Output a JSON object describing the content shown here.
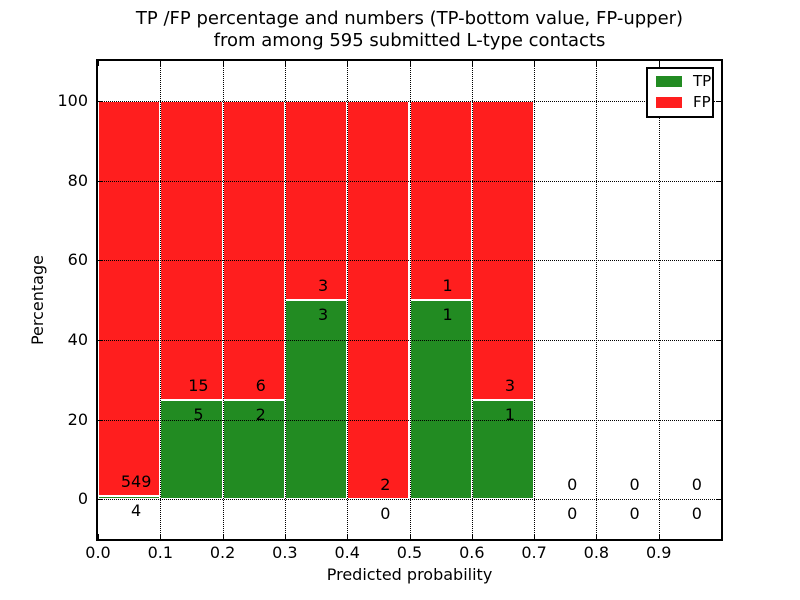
{
  "title": {
    "line1": "TP /FP percentage and numbers (TP-bottom value, FP-upper)",
    "line2": "from among 595 submitted L-type contacts"
  },
  "chart_data": {
    "type": "bar",
    "variant": "stacked-100-percent",
    "title": "TP /FP percentage and numbers (TP-bottom value, FP-upper) from among 595 submitted L-type contacts",
    "xlabel": "Predicted probability",
    "ylabel": "Percentage",
    "xlim": [
      0.0,
      1.0
    ],
    "ylim": [
      -10,
      110
    ],
    "x_tick_values": [
      0.0,
      0.1,
      0.2,
      0.3,
      0.4,
      0.5,
      0.6,
      0.7,
      0.8,
      0.9
    ],
    "x_tick_labels": [
      "0.0",
      "0.1",
      "0.2",
      "0.3",
      "0.4",
      "0.5",
      "0.6",
      "0.7",
      "0.8",
      "0.9"
    ],
    "y_tick_values": [
      0,
      20,
      40,
      60,
      80,
      100
    ],
    "y_tick_labels": [
      "0",
      "20",
      "40",
      "60",
      "80",
      "100"
    ],
    "grid": {
      "style": "dotted",
      "color": "#000000",
      "over_bars": true
    },
    "total_contacts": 595,
    "annotation_scheme": "FP count above TP/FP boundary, TP count below boundary",
    "series": [
      {
        "name": "TP",
        "color": "#228b22"
      },
      {
        "name": "FP",
        "color": "#ff1e1e"
      }
    ],
    "bins": [
      {
        "range": [
          0.0,
          0.1
        ],
        "tp": 4,
        "fp": 549,
        "tp_percent": 0.72,
        "fp_percent": 99.28
      },
      {
        "range": [
          0.1,
          0.2
        ],
        "tp": 5,
        "fp": 15,
        "tp_percent": 25.0,
        "fp_percent": 75.0
      },
      {
        "range": [
          0.2,
          0.3
        ],
        "tp": 2,
        "fp": 6,
        "tp_percent": 25.0,
        "fp_percent": 75.0
      },
      {
        "range": [
          0.3,
          0.4
        ],
        "tp": 3,
        "fp": 3,
        "tp_percent": 50.0,
        "fp_percent": 50.0
      },
      {
        "range": [
          0.4,
          0.5
        ],
        "tp": 0,
        "fp": 2,
        "tp_percent": 0.0,
        "fp_percent": 100.0
      },
      {
        "range": [
          0.5,
          0.6
        ],
        "tp": 1,
        "fp": 1,
        "tp_percent": 50.0,
        "fp_percent": 50.0
      },
      {
        "range": [
          0.6,
          0.7
        ],
        "tp": 1,
        "fp": 3,
        "tp_percent": 25.0,
        "fp_percent": 75.0
      },
      {
        "range": [
          0.7,
          0.8
        ],
        "tp": 0,
        "fp": 0,
        "tp_percent": null,
        "fp_percent": null
      },
      {
        "range": [
          0.8,
          0.9
        ],
        "tp": 0,
        "fp": 0,
        "tp_percent": null,
        "fp_percent": null
      },
      {
        "range": [
          0.9,
          1.0
        ],
        "tp": 0,
        "fp": 0,
        "tp_percent": null,
        "fp_percent": null
      }
    ],
    "legend": {
      "position": "upper right",
      "items": [
        "TP",
        "FP"
      ]
    }
  }
}
